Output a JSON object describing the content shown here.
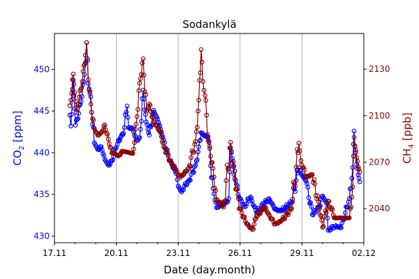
{
  "chart_data": {
    "type": "line",
    "title": "Sodankylä",
    "xlabel": "Date (day.month)",
    "x_unit": "days since 17.11",
    "xlim": [
      0,
      15
    ],
    "x_ticks": [
      {
        "value": 0,
        "label": "17.11"
      },
      {
        "value": 3,
        "label": "20.11"
      },
      {
        "value": 6,
        "label": "23.11"
      },
      {
        "value": 9,
        "label": "26.11"
      },
      {
        "value": 12,
        "label": "29.11"
      },
      {
        "value": 15,
        "label": "02.12"
      }
    ],
    "grid": "vertical major",
    "left_axis": {
      "label_main": "CO",
      "label_sub": "2",
      "label_unit": " [ppm]",
      "color": "#0000ff",
      "ylim": [
        429.2,
        454.3
      ],
      "ticks": [
        430,
        435,
        440,
        445,
        450
      ]
    },
    "right_axis": {
      "label_main": "CH",
      "label_sub": "4",
      "label_unit": " [ppb]",
      "color": "#8b0000",
      "ylim": [
        2018,
        2153
      ],
      "ticks": [
        2040,
        2070,
        2100,
        2130
      ]
    },
    "series": [
      {
        "name": "CO2",
        "axis": "left",
        "color": "#0000ff",
        "x": [
          0.74,
          0.8,
          0.91,
          0.98,
          1.02,
          1.1,
          1.25,
          1.42,
          1.5,
          1.56,
          1.64,
          1.76,
          1.93,
          2.1,
          2.27,
          2.44,
          2.61,
          2.78,
          2.95,
          3.05,
          3.2,
          3.35,
          3.52,
          3.6,
          3.8,
          3.96,
          4.13,
          4.3,
          4.45,
          4.6,
          4.8,
          5.0,
          5.15,
          5.3,
          5.6,
          5.9,
          6.0,
          6.16,
          6.3,
          6.5,
          6.84,
          7.0,
          7.11,
          7.3,
          7.45,
          7.69,
          7.86,
          8.0,
          8.2,
          8.4,
          8.45,
          8.54,
          8.7,
          8.9,
          9.2,
          9.5,
          9.8,
          10.2,
          10.4,
          10.7,
          11.0,
          11.5,
          11.85,
          11.95,
          12.2,
          12.5,
          12.85,
          13.0,
          13.2,
          13.27,
          13.6,
          13.9,
          14.1,
          14.3,
          14.46,
          14.53,
          14.65,
          14.8
        ],
        "values": [
          444.5,
          443.2,
          448.7,
          445.3,
          443.3,
          444.0,
          445.8,
          448.5,
          450.8,
          453.2,
          448.3,
          446.7,
          441.2,
          440.4,
          440.7,
          439.2,
          438.5,
          439.0,
          440.5,
          441.0,
          441.8,
          442.3,
          445.6,
          443.0,
          442.9,
          441.5,
          441.8,
          447.5,
          443.7,
          442.1,
          445.1,
          444.0,
          442.8,
          441.5,
          439.0,
          437.5,
          436.0,
          435.3,
          436.0,
          436.6,
          438.5,
          440.7,
          442.4,
          442.0,
          441.9,
          435.7,
          433.4,
          433.7,
          434.0,
          434.1,
          434.5,
          440.6,
          438.4,
          435.0,
          433.5,
          434.7,
          432.8,
          434.0,
          434.5,
          433.2,
          433.0,
          434.0,
          438.2,
          437.5,
          436.6,
          432.6,
          433.5,
          434.8,
          433.9,
          430.7,
          431.2,
          431.0,
          432.8,
          434.5,
          438.2,
          442.6,
          438.6,
          436.5
        ]
      },
      {
        "name": "CH4",
        "axis": "right",
        "color": "#8b0000",
        "x": [
          0.74,
          0.8,
          0.91,
          0.98,
          1.08,
          1.2,
          1.35,
          1.5,
          1.56,
          1.64,
          1.76,
          1.93,
          2.1,
          2.27,
          2.44,
          2.61,
          2.78,
          2.95,
          3.1,
          3.3,
          3.5,
          3.8,
          3.96,
          4.13,
          4.3,
          4.47,
          4.6,
          4.8,
          5.0,
          5.15,
          5.3,
          5.6,
          5.9,
          6.0,
          6.1,
          6.3,
          6.5,
          6.84,
          7.0,
          7.11,
          7.2,
          7.3,
          7.45,
          7.69,
          7.86,
          8.2,
          8.54,
          8.7,
          9.0,
          9.3,
          9.6,
          9.8,
          10.2,
          10.4,
          10.7,
          11.0,
          11.5,
          11.85,
          11.95,
          12.2,
          12.5,
          12.85,
          13.0,
          13.27,
          13.6,
          13.9,
          14.3,
          14.46,
          14.53,
          14.65,
          14.8
        ],
        "values": [
          2106.5,
          2110.0,
          2126.8,
          2115.0,
          2102.0,
          2112.0,
          2122.0,
          2139.0,
          2147.1,
          2123.3,
          2107.5,
          2091.8,
          2087.3,
          2089.0,
          2094.0,
          2085.0,
          2076.0,
          2075.5,
          2074.0,
          2077.0,
          2076.5,
          2075.6,
          2094.5,
          2121.0,
          2136.7,
          2103.0,
          2107.5,
          2096.3,
          2092.0,
          2089.0,
          2080.0,
          2071.0,
          2065.0,
          2062.0,
          2060.2,
          2063.0,
          2066.0,
          2083.3,
          2110.0,
          2142.6,
          2122.0,
          2113.0,
          2084.0,
          2066.0,
          2046.0,
          2041.0,
          2082.8,
          2062.0,
          2040.0,
          2030.5,
          2026.5,
          2035.0,
          2041.0,
          2036.0,
          2030.0,
          2032.0,
          2040.0,
          2082.3,
          2071.0,
          2060.2,
          2062.0,
          2040.0,
          2028.0,
          2045.0,
          2034.0,
          2034.0,
          2034.0,
          2054.0,
          2086.0,
          2073.0,
          2063.5
        ]
      }
    ]
  }
}
